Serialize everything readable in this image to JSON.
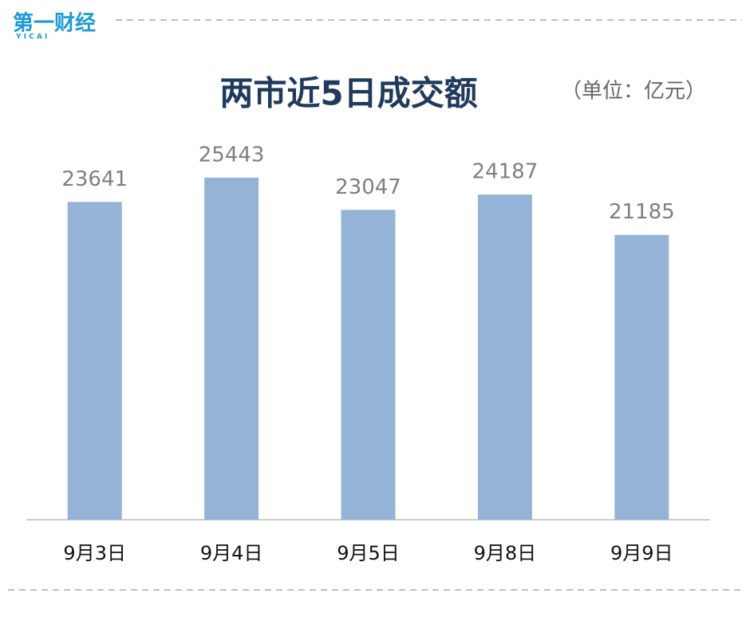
{
  "logo": {
    "name": "第一财经",
    "sub": "Y I C A I"
  },
  "chart_data": {
    "type": "bar",
    "title": "两市近5日成交额",
    "unit": "（单位：亿元）",
    "categories": [
      "9月3日",
      "9月4日",
      "9月5日",
      "9月8日",
      "9月9日"
    ],
    "values": [
      23641,
      25443,
      23047,
      24187,
      21185
    ],
    "color": "#95b3d7",
    "ylim": [
      0,
      30000
    ],
    "grid": false
  }
}
